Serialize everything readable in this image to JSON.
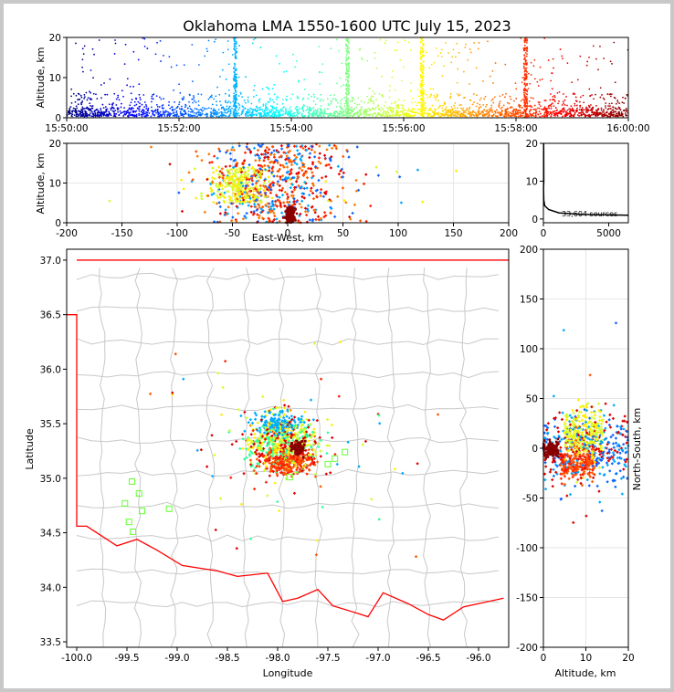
{
  "title": "Oklahoma LMA 1550-1600 UTC July 15, 2023",
  "time_panel": {
    "ylabel": "Altitude, km",
    "ticks_x": [
      "15:50:00",
      "15:52:00",
      "15:54:00",
      "15:56:00",
      "15:58:00",
      "16:00:00"
    ],
    "ticks_y": [
      "0",
      "10",
      "20"
    ]
  },
  "ew_panel": {
    "xlabel": "East-West, km",
    "ylabel": "Altitude, km",
    "ticks_x": [
      "-200",
      "-150",
      "-100",
      "-50",
      "0",
      "50",
      "100",
      "150",
      "200"
    ],
    "ticks_y": [
      "0",
      "10",
      "20"
    ]
  },
  "hist_panel": {
    "annotation": "33,604 sources",
    "ticks_x": [
      "0",
      "5000"
    ],
    "ticks_y": [
      "0",
      "10",
      "20"
    ]
  },
  "map_panel": {
    "xlabel": "Longitude",
    "ylabel": "Latitude",
    "ticks_x": [
      "-100.0",
      "-99.5",
      "-99.0",
      "-98.5",
      "-98.0",
      "-97.5",
      "-97.0",
      "-96.5",
      "-96.0"
    ],
    "ticks_y": [
      "33.5",
      "34.0",
      "34.5",
      "35.0",
      "35.5",
      "36.0",
      "36.5",
      "37.0"
    ]
  },
  "ns_panel": {
    "xlabel": "Altitude, km",
    "ylabel": "North-South, km",
    "ticks_x": [
      "0",
      "10",
      "20"
    ],
    "ticks_y": [
      "-200",
      "-150",
      "-100",
      "-50",
      "0",
      "50",
      "100",
      "150",
      "200"
    ]
  },
  "colors": {
    "state_border": "#ff0000",
    "county_lines": "#c8c8c8",
    "station_marker": "#66ff33",
    "source_density_line": "#000000"
  },
  "chart_data": [
    {
      "type": "scatter",
      "panel": "altitude-vs-time",
      "x_range": [
        "15:50:00",
        "16:00:00"
      ],
      "ylim": [
        0,
        20
      ],
      "color_by": "time (jet colormap, early=blue, late=dark red)",
      "vertical_bursts_times": [
        "15:53:00",
        "15:55:00",
        "15:56:20",
        "15:58:10"
      ],
      "typical_source_altitude_range_km": [
        0,
        3
      ]
    },
    {
      "type": "scatter",
      "panel": "east-west-vs-altitude",
      "xlim": [
        -200,
        200
      ],
      "ylim": [
        0,
        20
      ],
      "main_cluster_x_km": [
        -70,
        60
      ]
    },
    {
      "type": "line",
      "panel": "source-count-by-altitude",
      "xlim": [
        0,
        6500
      ],
      "ylim": [
        0,
        20
      ],
      "total_sources": 33604,
      "x": [
        6500,
        3000,
        1200,
        400,
        100,
        30,
        20,
        10,
        30,
        20
      ],
      "y": [
        1,
        1.2,
        1.6,
        2.5,
        3.5,
        5,
        6.5,
        8,
        10,
        20
      ]
    },
    {
      "type": "scatter",
      "panel": "plan-view-map",
      "xlim": [
        -100.1,
        -95.7
      ],
      "ylim": [
        33.45,
        37.1
      ],
      "main_cluster_center": [
        -97.9,
        35.3
      ],
      "stations": [
        [
          -99.45,
          34.97
        ],
        [
          -99.38,
          34.86
        ],
        [
          -99.35,
          34.7
        ],
        [
          -99.52,
          34.77
        ],
        [
          -99.48,
          34.6
        ],
        [
          -99.44,
          34.51
        ],
        [
          -99.08,
          34.72
        ],
        [
          -97.88,
          35.01
        ],
        [
          -97.5,
          35.13
        ],
        [
          -97.43,
          35.18
        ],
        [
          -97.33,
          35.24
        ]
      ]
    },
    {
      "type": "scatter",
      "panel": "altitude-vs-north-south",
      "xlim": [
        0,
        20
      ],
      "ylim": [
        -200,
        200
      ],
      "main_cluster_y_km": [
        -40,
        40
      ]
    }
  ]
}
